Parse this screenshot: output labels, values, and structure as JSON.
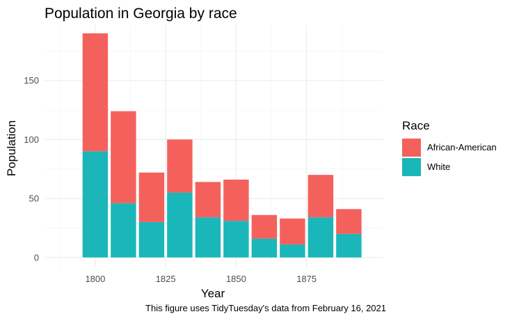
{
  "chart_data": {
    "type": "bar",
    "stacked": true,
    "title": "Population in Georgia by race",
    "xlabel": "Year",
    "ylabel": "Population",
    "caption": "This figure uses TidyTuesday's data from February 16, 2021",
    "x": [
      1800,
      1810,
      1820,
      1830,
      1840,
      1850,
      1860,
      1870,
      1880,
      1890
    ],
    "series": [
      {
        "name": "White",
        "color": "#1BB6B9",
        "values": [
          90,
          46,
          30,
          55,
          34,
          31,
          16,
          11,
          34,
          20
        ]
      },
      {
        "name": "African-American",
        "color": "#F4615D",
        "values": [
          100,
          78,
          42,
          45,
          30,
          35,
          20,
          22,
          36,
          21
        ]
      }
    ],
    "xlim": [
      1782,
      1902
    ],
    "ylim": [
      -9,
      197
    ],
    "xticks": [
      1800,
      1825,
      1850,
      1875
    ],
    "yticks": [
      0,
      50,
      100,
      150
    ],
    "grid": true,
    "legend": {
      "title": "Race",
      "position": "right",
      "entries": [
        {
          "label": "African-American",
          "color": "#F4615D"
        },
        {
          "label": "White",
          "color": "#1BB6B9"
        }
      ]
    }
  }
}
